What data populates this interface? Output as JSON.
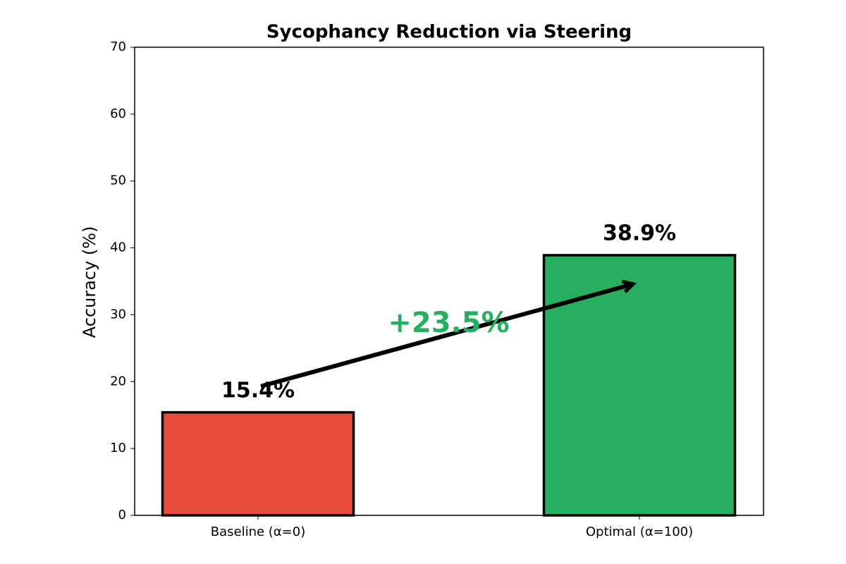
{
  "chart_data": {
    "type": "bar",
    "title": "Sycophancy Reduction via Steering",
    "y_label": "Accuracy (%)",
    "categories": [
      "Baseline (α=0)",
      "Optimal (α=100)"
    ],
    "values": [
      15.4,
      38.9
    ],
    "value_labels": [
      "15.4%",
      "38.9%"
    ],
    "colors": [
      "#e74c3c",
      "#27ae60"
    ],
    "annotation": "+23.5%",
    "ylim": [
      0,
      70
    ],
    "yticks": [
      0,
      10,
      20,
      30,
      40,
      50,
      60,
      70
    ]
  }
}
